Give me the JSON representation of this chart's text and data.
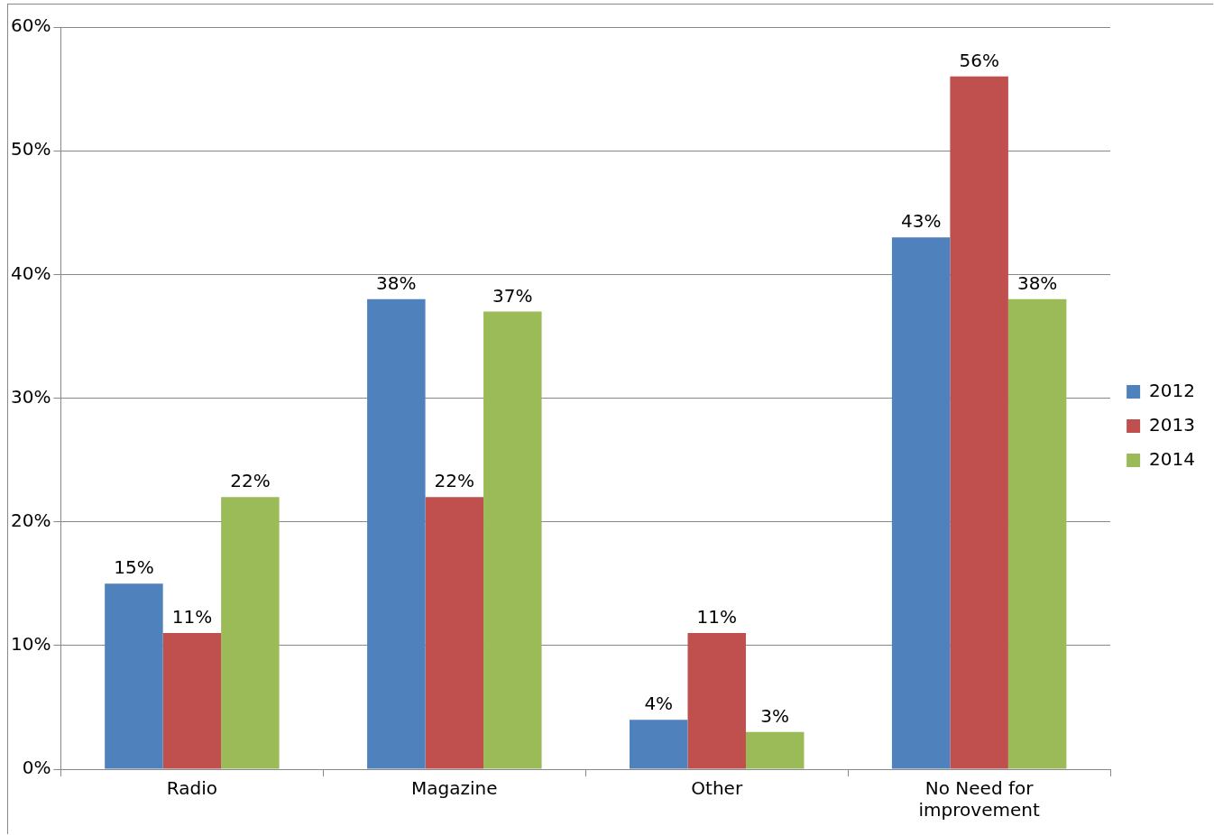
{
  "chart_data": {
    "type": "bar",
    "categories": [
      "Radio",
      "Magazine",
      "Other",
      "No Need for improvement"
    ],
    "series": [
      {
        "name": "2012",
        "color": "#4f81bd",
        "values": [
          15,
          38,
          4,
          43
        ],
        "value_labels": [
          "15%",
          "38%",
          "4%",
          "43%"
        ]
      },
      {
        "name": "2013",
        "color": "#c0504d",
        "values": [
          11,
          22,
          11,
          56
        ],
        "value_labels": [
          "11%",
          "22%",
          "11%",
          "56%"
        ]
      },
      {
        "name": "2014",
        "color": "#9bbb59",
        "values": [
          22,
          37,
          3,
          38
        ],
        "value_labels": [
          "22%",
          "37%",
          "3%",
          "38%"
        ]
      }
    ],
    "ylim": [
      0,
      60
    ],
    "yticks": [
      {
        "value": 0,
        "label": "0%"
      },
      {
        "value": 10,
        "label": "10%"
      },
      {
        "value": 20,
        "label": "20%"
      },
      {
        "value": 30,
        "label": "30%"
      },
      {
        "value": 40,
        "label": "40%"
      },
      {
        "value": 50,
        "label": "50%"
      },
      {
        "value": 60,
        "label": "60%"
      }
    ],
    "grid": "y",
    "legend": "right"
  }
}
